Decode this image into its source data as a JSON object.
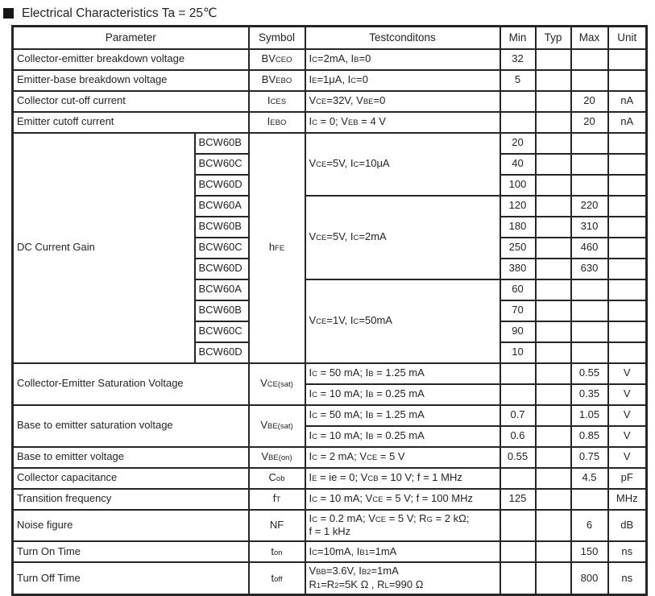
{
  "title": "Electrical Characteristics Ta = 25℃",
  "colors": {
    "border": "#262626",
    "text": "#242424",
    "background": "#ffffff",
    "bullet": "#151515"
  },
  "table": {
    "header_cells": [
      {
        "t": "Parameter",
        "cs": 2
      },
      {
        "t": "Symbol"
      },
      {
        "t": "Testconditons"
      },
      {
        "t": "Min"
      },
      {
        "t": "Typ"
      },
      {
        "t": "Max"
      },
      {
        "t": "Unit"
      }
    ],
    "rows": [
      [
        {
          "t": "Collector-emitter breakdown voltage",
          "c": "l",
          "cs": 2
        },
        {
          "t": "BV~CEO~"
        },
        {
          "t": "I~C~=2mA, I~B~=0",
          "c": "l"
        },
        {
          "t": "32"
        },
        {
          "t": ""
        },
        {
          "t": ""
        },
        {
          "t": ""
        }
      ],
      [
        {
          "t": "Emitter-base breakdown voltage",
          "c": "l",
          "cs": 2
        },
        {
          "t": "BV~EBO~"
        },
        {
          "t": "I~E~=1μA, I~C~=0",
          "c": "l"
        },
        {
          "t": "5"
        },
        {
          "t": ""
        },
        {
          "t": ""
        },
        {
          "t": ""
        }
      ],
      [
        {
          "t": "Collector cut-off current",
          "c": "l",
          "cs": 2
        },
        {
          "t": "I~CES~"
        },
        {
          "t": "V~CE~=32V, V~BE~=0",
          "c": "l"
        },
        {
          "t": ""
        },
        {
          "t": ""
        },
        {
          "t": "20"
        },
        {
          "t": "nA"
        }
      ],
      [
        {
          "t": "Emitter cutoff current",
          "c": "l",
          "cs": 2
        },
        {
          "t": "I~EBO~"
        },
        {
          "t": "I~C~ = 0; V~EB~ = 4 V",
          "c": "l"
        },
        {
          "t": ""
        },
        {
          "t": ""
        },
        {
          "t": "20"
        },
        {
          "t": "nA"
        }
      ],
      [
        {
          "t": "DC Current Gain",
          "c": "l",
          "rs": 11
        },
        {
          "t": "BCW60B",
          "c": "l"
        },
        {
          "t": "h~FE~",
          "rs": 11
        },
        {
          "t": "V~CE~=5V, I~C~=10μA",
          "c": "l",
          "rs": 3
        },
        {
          "t": "20"
        },
        {
          "t": ""
        },
        {
          "t": ""
        },
        {
          "t": ""
        }
      ],
      [
        {
          "t": "BCW60C",
          "c": "l"
        },
        {
          "t": "40"
        },
        {
          "t": ""
        },
        {
          "t": ""
        },
        {
          "t": ""
        }
      ],
      [
        {
          "t": "BCW60D",
          "c": "l"
        },
        {
          "t": "100"
        },
        {
          "t": ""
        },
        {
          "t": ""
        },
        {
          "t": ""
        }
      ],
      [
        {
          "t": "BCW60A",
          "c": "l"
        },
        {
          "t": "V~CE~=5V, I~C~=2mA",
          "c": "l",
          "rs": 4
        },
        {
          "t": "120"
        },
        {
          "t": ""
        },
        {
          "t": "220"
        },
        {
          "t": ""
        }
      ],
      [
        {
          "t": "BCW60B",
          "c": "l"
        },
        {
          "t": "180"
        },
        {
          "t": ""
        },
        {
          "t": "310"
        },
        {
          "t": ""
        }
      ],
      [
        {
          "t": "BCW60C",
          "c": "l"
        },
        {
          "t": "250"
        },
        {
          "t": ""
        },
        {
          "t": "460"
        },
        {
          "t": ""
        }
      ],
      [
        {
          "t": "BCW60D",
          "c": "l"
        },
        {
          "t": "380"
        },
        {
          "t": ""
        },
        {
          "t": "630"
        },
        {
          "t": ""
        }
      ],
      [
        {
          "t": "BCW60A",
          "c": "l"
        },
        {
          "t": "V~CE~=1V, I~C~=50mA",
          "c": "l",
          "rs": 4
        },
        {
          "t": "60"
        },
        {
          "t": ""
        },
        {
          "t": ""
        },
        {
          "t": ""
        }
      ],
      [
        {
          "t": "BCW60B",
          "c": "l"
        },
        {
          "t": "70"
        },
        {
          "t": ""
        },
        {
          "t": ""
        },
        {
          "t": ""
        }
      ],
      [
        {
          "t": "BCW60C",
          "c": "l"
        },
        {
          "t": "90"
        },
        {
          "t": ""
        },
        {
          "t": ""
        },
        {
          "t": ""
        }
      ],
      [
        {
          "t": "BCW60D",
          "c": "l"
        },
        {
          "t": "10"
        },
        {
          "t": ""
        },
        {
          "t": ""
        },
        {
          "t": ""
        }
      ],
      [
        {
          "t": "Collector-Emitter Saturation Voltage",
          "c": "l",
          "cs": 2,
          "rs": 2
        },
        {
          "t": "V~CE(sat)~",
          "rs": 2
        },
        {
          "t": "I~C~ = 50 mA; I~B~ = 1.25 mA",
          "c": "l"
        },
        {
          "t": ""
        },
        {
          "t": ""
        },
        {
          "t": "0.55"
        },
        {
          "t": "V"
        }
      ],
      [
        {
          "t": "I~C~ = 10 mA; I~B~ = 0.25 mA",
          "c": "l"
        },
        {
          "t": ""
        },
        {
          "t": ""
        },
        {
          "t": "0.35"
        },
        {
          "t": "V"
        }
      ],
      [
        {
          "t": "Base to emitter saturation voltage",
          "c": "l",
          "cs": 2,
          "rs": 2
        },
        {
          "t": "V~BE(sat)~",
          "rs": 2
        },
        {
          "t": "I~C~ = 50 mA; I~B~ = 1.25 mA",
          "c": "l"
        },
        {
          "t": "0.7"
        },
        {
          "t": ""
        },
        {
          "t": "1.05"
        },
        {
          "t": "V"
        }
      ],
      [
        {
          "t": "I~C~ = 10 mA; I~B~ = 0.25 mA",
          "c": "l"
        },
        {
          "t": "0.6"
        },
        {
          "t": ""
        },
        {
          "t": "0.85"
        },
        {
          "t": "V"
        }
      ],
      [
        {
          "t": "Base to emitter voltage",
          "c": "l",
          "cs": 2
        },
        {
          "t": "V~BE(on)~"
        },
        {
          "t": "I~C~ = 2 mA; V~CE~ = 5 V",
          "c": "l"
        },
        {
          "t": "0.55"
        },
        {
          "t": ""
        },
        {
          "t": "0.75"
        },
        {
          "t": "V"
        }
      ],
      [
        {
          "t": "Collector capacitance",
          "c": "l",
          "cs": 2
        },
        {
          "t": "C~ob~"
        },
        {
          "t": "I~E~ = ie = 0; V~CB~ = 10 V; f = 1 MHz",
          "c": "l"
        },
        {
          "t": ""
        },
        {
          "t": ""
        },
        {
          "t": "4.5"
        },
        {
          "t": "pF"
        }
      ],
      [
        {
          "t": "Transition frequency",
          "c": "l",
          "cs": 2
        },
        {
          "t": "f~T~"
        },
        {
          "t": "I~C~ = 10 mA; V~CE~ = 5 V; f = 100 MHz",
          "c": "l"
        },
        {
          "t": "125"
        },
        {
          "t": ""
        },
        {
          "t": ""
        },
        {
          "t": "MHz"
        }
      ],
      [
        {
          "t": "Noise figure",
          "c": "l",
          "cs": 2
        },
        {
          "t": "NF"
        },
        {
          "t": "I~C~ = 0.2 mA; V~CE~ = 5 V; R~G~ = 2 kΩ;\nf = 1 kHz",
          "c": "l"
        },
        {
          "t": ""
        },
        {
          "t": ""
        },
        {
          "t": "6"
        },
        {
          "t": "dB"
        }
      ],
      [
        {
          "t": "Turn On Time",
          "c": "l",
          "cs": 2
        },
        {
          "t": "t~on~"
        },
        {
          "t": "I~C~=10mA, I~B1~=1mA",
          "c": "l"
        },
        {
          "t": ""
        },
        {
          "t": ""
        },
        {
          "t": "150"
        },
        {
          "t": "ns"
        }
      ],
      [
        {
          "t": "Turn Off Time",
          "c": "l",
          "cs": 2
        },
        {
          "t": "t~off~"
        },
        {
          "t": "V~BB~=3.6V, I~B2~=1mA\nR~1~=R~2~=5K Ω , R~L~=990 Ω",
          "c": "l"
        },
        {
          "t": ""
        },
        {
          "t": ""
        },
        {
          "t": "800"
        },
        {
          "t": "ns"
        }
      ]
    ]
  }
}
